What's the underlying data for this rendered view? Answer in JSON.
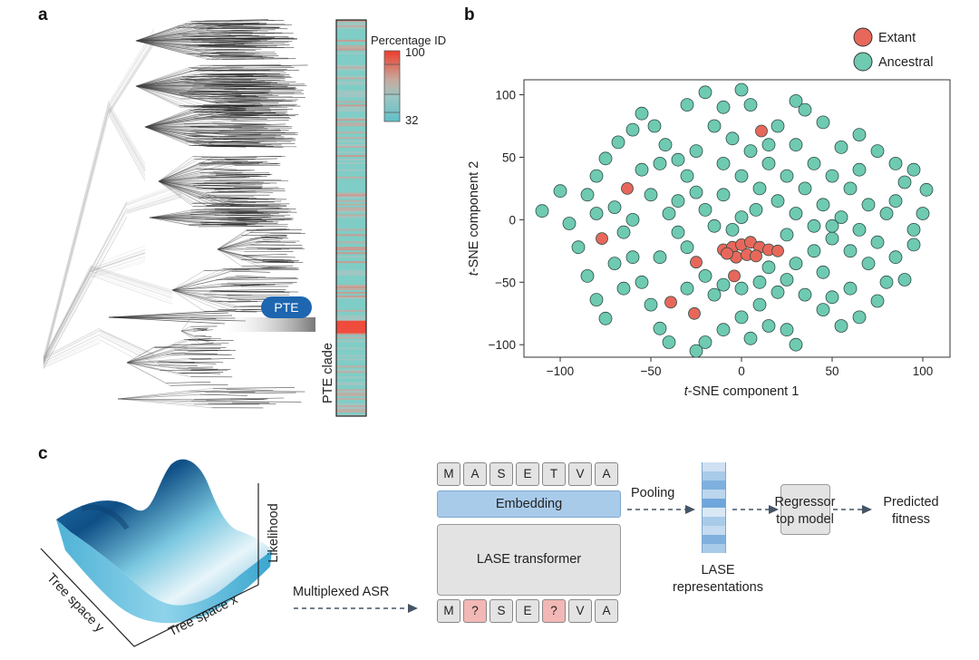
{
  "panels": {
    "a": "a",
    "b": "b",
    "c": "c"
  },
  "panel_a": {
    "pte_badge": "PTE",
    "clade_label": "PTE clade",
    "colorbar_title": "Percentage ID",
    "colorbar_max": "100",
    "colorbar_min": "32",
    "colors": {
      "low": "#7fcdc6",
      "mid": "#c7a79b",
      "high": "#ef4c3c",
      "badge": "#1e66b0"
    }
  },
  "chart_data": {
    "type": "scatter",
    "xlabel_italic": "t",
    "xlabel_rest": "-SNE component 1",
    "ylabel_italic": "t",
    "ylabel_rest": "-SNE component 2",
    "xlim": [
      -120,
      115
    ],
    "ylim": [
      -110,
      112
    ],
    "xticks": [
      -100,
      -50,
      0,
      50,
      100
    ],
    "yticks": [
      -100,
      -50,
      0,
      50,
      100
    ],
    "legend_position": "top-right",
    "series": [
      {
        "name": "Extant",
        "color": "#e8675b",
        "points": [
          [
            11,
            71
          ],
          [
            -63,
            25
          ],
          [
            -77,
            -15
          ],
          [
            -25,
            -34
          ],
          [
            -4,
            -45
          ],
          [
            -39,
            -66
          ],
          [
            -26,
            -75
          ],
          [
            -10,
            -24
          ],
          [
            -5,
            -22
          ],
          [
            0,
            -20
          ],
          [
            5,
            -18
          ],
          [
            10,
            -22
          ],
          [
            15,
            -24
          ],
          [
            20,
            -25
          ],
          [
            -3,
            -30
          ],
          [
            3,
            -28
          ],
          [
            8,
            -29
          ],
          [
            -8,
            -27
          ]
        ]
      },
      {
        "name": "Ancestral",
        "color": "#6fcab2",
        "points": [
          [
            -110,
            7
          ],
          [
            -100,
            23
          ],
          [
            -95,
            -3
          ],
          [
            -90,
            -22
          ],
          [
            -85,
            -45
          ],
          [
            -80,
            -64
          ],
          [
            -75,
            -79
          ],
          [
            -85,
            20
          ],
          [
            -80,
            35
          ],
          [
            -75,
            49
          ],
          [
            -70,
            10
          ],
          [
            -65,
            -10
          ],
          [
            -60,
            -30
          ],
          [
            -55,
            -50
          ],
          [
            -50,
            -68
          ],
          [
            -45,
            -87
          ],
          [
            -40,
            -98
          ],
          [
            -68,
            62
          ],
          [
            -60,
            72
          ],
          [
            -55,
            85
          ],
          [
            -48,
            75
          ],
          [
            -42,
            60
          ],
          [
            -35,
            48
          ],
          [
            -30,
            35
          ],
          [
            -25,
            22
          ],
          [
            -20,
            8
          ],
          [
            -15,
            -5
          ],
          [
            -35,
            -10
          ],
          [
            -30,
            -22
          ],
          [
            -45,
            -30
          ],
          [
            -50,
            20
          ],
          [
            -40,
            5
          ],
          [
            -55,
            40
          ],
          [
            -30,
            92
          ],
          [
            -20,
            102
          ],
          [
            -10,
            90
          ],
          [
            0,
            104
          ],
          [
            5,
            92
          ],
          [
            -15,
            75
          ],
          [
            -5,
            65
          ],
          [
            5,
            55
          ],
          [
            15,
            45
          ],
          [
            25,
            35
          ],
          [
            35,
            25
          ],
          [
            45,
            12
          ],
          [
            55,
            2
          ],
          [
            65,
            -8
          ],
          [
            75,
            -18
          ],
          [
            85,
            -30
          ],
          [
            95,
            -20
          ],
          [
            100,
            5
          ],
          [
            90,
            30
          ],
          [
            85,
            45
          ],
          [
            75,
            55
          ],
          [
            65,
            68
          ],
          [
            55,
            58
          ],
          [
            45,
            78
          ],
          [
            35,
            88
          ],
          [
            30,
            95
          ],
          [
            20,
            75
          ],
          [
            30,
            60
          ],
          [
            40,
            45
          ],
          [
            50,
            35
          ],
          [
            60,
            25
          ],
          [
            70,
            12
          ],
          [
            80,
            5
          ],
          [
            95,
            40
          ],
          [
            102,
            24
          ],
          [
            -10,
            45
          ],
          [
            0,
            35
          ],
          [
            10,
            25
          ],
          [
            20,
            15
          ],
          [
            30,
            5
          ],
          [
            40,
            -5
          ],
          [
            50,
            -15
          ],
          [
            60,
            -25
          ],
          [
            70,
            -35
          ],
          [
            80,
            -50
          ],
          [
            90,
            -48
          ],
          [
            75,
            -65
          ],
          [
            65,
            -78
          ],
          [
            55,
            -85
          ],
          [
            45,
            -72
          ],
          [
            35,
            -60
          ],
          [
            25,
            -48
          ],
          [
            15,
            -38
          ],
          [
            30,
            -35
          ],
          [
            45,
            -42
          ],
          [
            40,
            -25
          ],
          [
            20,
            -58
          ],
          [
            10,
            -68
          ],
          [
            0,
            -78
          ],
          [
            -10,
            -88
          ],
          [
            -20,
            -98
          ],
          [
            5,
            -95
          ],
          [
            15,
            -85
          ],
          [
            25,
            -88
          ],
          [
            -25,
            -105
          ],
          [
            30,
            -100
          ],
          [
            -15,
            -60
          ],
          [
            -10,
            -52
          ],
          [
            -20,
            -45
          ],
          [
            -30,
            -55
          ],
          [
            0,
            -55
          ],
          [
            10,
            -50
          ],
          [
            -5,
            -8
          ],
          [
            0,
            2
          ],
          [
            8,
            8
          ],
          [
            -25,
            55
          ],
          [
            -35,
            15
          ],
          [
            -60,
            0
          ],
          [
            -70,
            -35
          ],
          [
            -80,
            5
          ],
          [
            60,
            -55
          ],
          [
            50,
            -62
          ],
          [
            85,
            15
          ],
          [
            -10,
            20
          ],
          [
            -45,
            45
          ],
          [
            15,
            60
          ],
          [
            50,
            -5
          ],
          [
            25,
            -12
          ],
          [
            65,
            40
          ],
          [
            -65,
            -55
          ],
          [
            95,
            -8
          ]
        ]
      }
    ]
  },
  "panel_c": {
    "likelihood": "Likelihood",
    "tree_x": "Tree space x",
    "tree_y": "Tree space y",
    "multiplexed": "Multiplexed ASR",
    "tokens_top": [
      "M",
      "A",
      "S",
      "E",
      "T",
      "V",
      "A"
    ],
    "tokens_bottom": [
      "M",
      "?",
      "S",
      "E",
      "?",
      "V",
      "A"
    ],
    "embedding": "Embedding",
    "transformer": "LASE transformer",
    "pooling": "Pooling",
    "repr_line1": "LASE",
    "repr_line2": "representations",
    "regressor_line1": "Regressor",
    "regressor_line2": "top model",
    "predicted_line1": "Predicted",
    "predicted_line2": "fitness"
  }
}
